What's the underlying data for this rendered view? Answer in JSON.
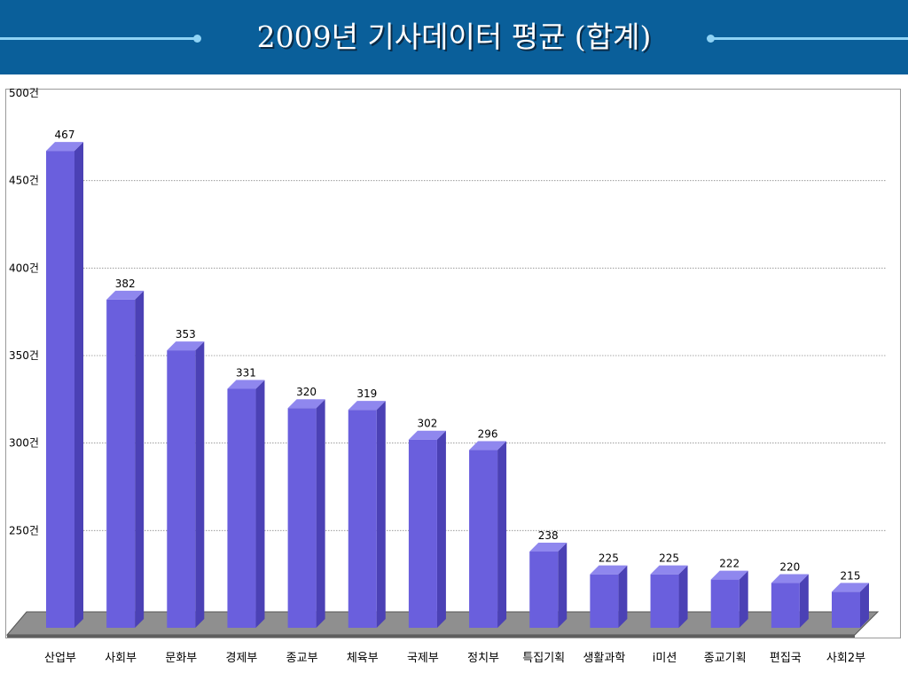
{
  "header": {
    "title": "2009년 기사데이터 평균 (합계)"
  },
  "colors": {
    "header_bg": "#0a5f9a",
    "bar_front": "#6a5fdd",
    "bar_side": "#4b41b5",
    "bar_top": "#8f87ee"
  },
  "chart_data": {
    "type": "bar",
    "title": "2009년 기사데이터 평균 (합계)",
    "xlabel": "",
    "ylabel": "",
    "categories": [
      "산업부",
      "사회부",
      "문화부",
      "경제부",
      "종교부",
      "체육부",
      "국제부",
      "정치부",
      "특집기획",
      "생활과학",
      "i미션",
      "종교기획",
      "편집국",
      "사회2부"
    ],
    "values": [
      467,
      382,
      353,
      331,
      320,
      319,
      302,
      296,
      238,
      225,
      225,
      222,
      220,
      215
    ],
    "data_labels": [
      "467",
      "382",
      "353",
      "331",
      "320",
      "319",
      "302",
      "296",
      "238",
      "225",
      "225",
      "222",
      "220",
      "215"
    ],
    "y_ticks": [
      250,
      300,
      350,
      400,
      450,
      500
    ],
    "y_tick_labels": [
      "250건",
      "300건",
      "350건",
      "400건",
      "450건",
      "500건"
    ],
    "ylim": [
      200,
      500
    ],
    "grid": true,
    "legend": "none"
  }
}
